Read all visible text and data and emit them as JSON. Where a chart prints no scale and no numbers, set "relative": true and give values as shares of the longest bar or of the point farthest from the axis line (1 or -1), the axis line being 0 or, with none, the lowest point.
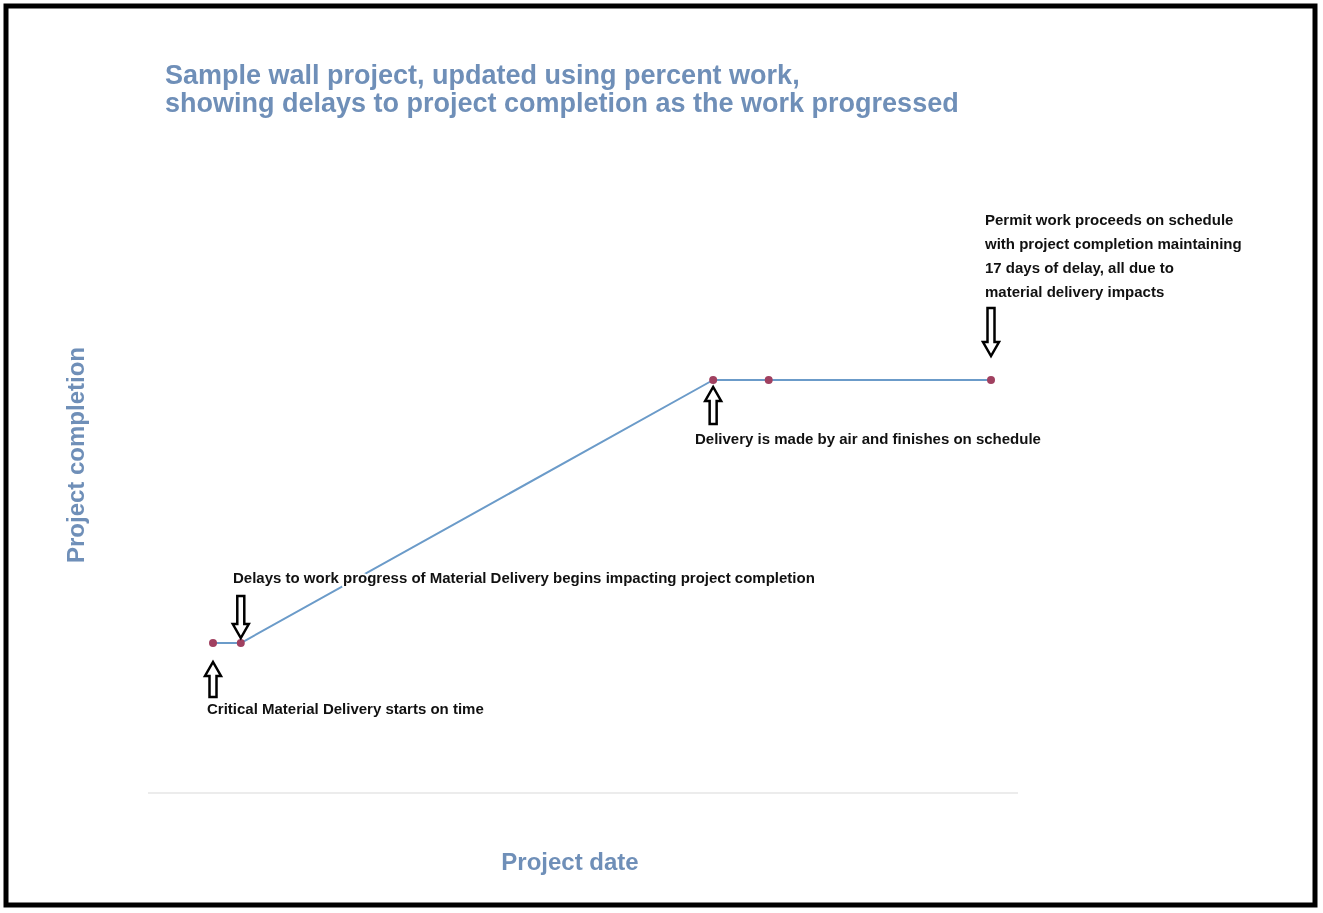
{
  "chart_data": {
    "type": "line",
    "title": "Sample wall project, updated using percent work,\nshowing delays to project completion as the work progressed",
    "xlabel": "Project date",
    "ylabel": "Project completion",
    "relative": true,
    "categories": [
      null,
      null,
      null,
      null,
      null,
      null,
      null,
      null,
      null,
      null,
      null,
      null,
      null,
      null,
      null,
      null,
      null,
      null,
      null,
      null,
      null,
      null,
      null,
      null,
      null,
      null,
      null,
      null,
      null
    ],
    "series": [
      {
        "color": "#6b9bc9",
        "values": [
          0.363,
          0.363,
          null,
          null,
          null,
          null,
          null,
          null,
          null,
          null,
          null,
          null,
          null,
          null,
          null,
          null,
          null,
          null,
          1,
          null,
          1,
          null,
          null,
          null,
          null,
          null,
          null,
          null,
          1
        ]
      }
    ],
    "marker": "circle",
    "annotations": [
      "Critical Material Delivery starts on time",
      "Delays to work progress of Material Delivery begins impacting project completion",
      "Delivery is made by air and finishes on schedule",
      "Permit work proceeds on schedule with project completion maintaining 17 days of delay, all due to material delivery impacts"
    ]
  }
}
